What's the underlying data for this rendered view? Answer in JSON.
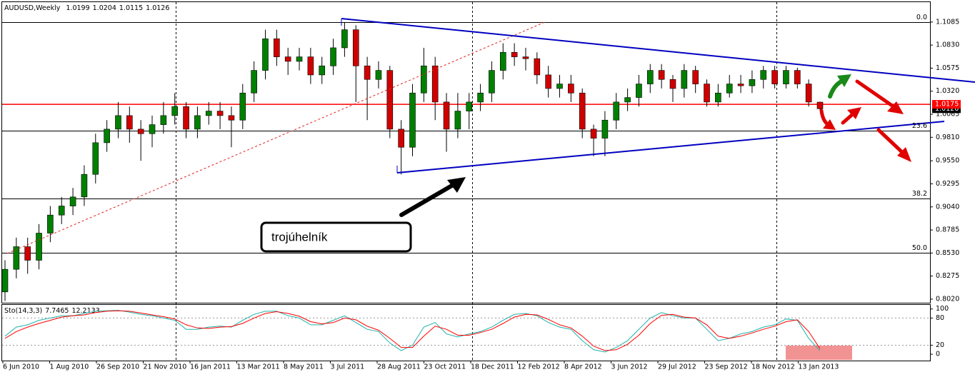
{
  "chart_data": {
    "type": "candlestick",
    "title": "AUDUSD,Weekly",
    "up_color": "#008000",
    "down_color": "#d00000",
    "candles": [
      [
        0.81,
        0.845,
        0.8,
        0.835
      ],
      [
        0.835,
        0.87,
        0.825,
        0.86
      ],
      [
        0.86,
        0.87,
        0.83,
        0.845
      ],
      [
        0.845,
        0.885,
        0.835,
        0.875
      ],
      [
        0.875,
        0.905,
        0.865,
        0.895
      ],
      [
        0.895,
        0.915,
        0.885,
        0.905
      ],
      [
        0.905,
        0.925,
        0.895,
        0.915
      ],
      [
        0.915,
        0.95,
        0.905,
        0.94
      ],
      [
        0.94,
        0.985,
        0.93,
        0.975
      ],
      [
        0.975,
        1.0,
        0.965,
        0.99
      ],
      [
        0.99,
        1.02,
        0.98,
        1.005
      ],
      [
        1.005,
        1.015,
        0.975,
        0.99
      ],
      [
        0.99,
        1.0,
        0.955,
        0.985
      ],
      [
        0.985,
        1.005,
        0.97,
        0.995
      ],
      [
        0.995,
        1.02,
        0.985,
        1.005
      ],
      [
        1.005,
        1.03,
        0.995,
        1.015
      ],
      [
        1.015,
        1.02,
        0.98,
        0.99
      ],
      [
        0.99,
        1.015,
        0.98,
        1.005
      ],
      [
        1.005,
        1.02,
        0.995,
        1.01
      ],
      [
        1.01,
        1.02,
        0.99,
        1.005
      ],
      [
        1.005,
        1.015,
        0.97,
        1.0
      ],
      [
        1.0,
        1.04,
        0.99,
        1.03
      ],
      [
        1.03,
        1.065,
        1.02,
        1.055
      ],
      [
        1.055,
        1.1,
        1.045,
        1.09
      ],
      [
        1.09,
        1.1,
        1.06,
        1.07
      ],
      [
        1.07,
        1.08,
        1.05,
        1.065
      ],
      [
        1.065,
        1.08,
        1.055,
        1.07
      ],
      [
        1.07,
        1.08,
        1.04,
        1.05
      ],
      [
        1.05,
        1.07,
        1.04,
        1.06
      ],
      [
        1.06,
        1.09,
        1.05,
        1.08
      ],
      [
        1.08,
        1.108,
        1.07,
        1.1
      ],
      [
        1.1,
        1.105,
        1.02,
        1.06
      ],
      [
        1.06,
        1.07,
        1.0,
        1.045
      ],
      [
        1.045,
        1.065,
        1.035,
        1.055
      ],
      [
        1.055,
        1.06,
        0.98,
        0.99
      ],
      [
        0.99,
        1.0,
        0.94,
        0.97
      ],
      [
        0.97,
        1.04,
        0.96,
        1.03
      ],
      [
        1.03,
        1.08,
        1.02,
        1.06
      ],
      [
        1.06,
        1.07,
        1.0,
        1.02
      ],
      [
        1.02,
        1.03,
        0.965,
        0.99
      ],
      [
        0.99,
        1.03,
        0.98,
        1.01
      ],
      [
        1.01,
        1.03,
        0.99,
        1.02
      ],
      [
        1.02,
        1.04,
        1.01,
        1.03
      ],
      [
        1.03,
        1.065,
        1.02,
        1.055
      ],
      [
        1.055,
        1.085,
        1.045,
        1.075
      ],
      [
        1.075,
        1.085,
        1.06,
        1.07
      ],
      [
        1.07,
        1.08,
        1.055,
        1.068
      ],
      [
        1.068,
        1.075,
        1.04,
        1.05
      ],
      [
        1.05,
        1.06,
        1.025,
        1.035
      ],
      [
        1.035,
        1.05,
        1.025,
        1.04
      ],
      [
        1.04,
        1.05,
        1.02,
        1.03
      ],
      [
        1.03,
        1.035,
        0.98,
        0.99
      ],
      [
        0.99,
        0.995,
        0.96,
        0.98
      ],
      [
        0.98,
        1.01,
        0.96,
        1.0
      ],
      [
        1.0,
        1.03,
        0.99,
        1.02
      ],
      [
        1.02,
        1.035,
        1.01,
        1.025
      ],
      [
        1.025,
        1.05,
        1.015,
        1.04
      ],
      [
        1.04,
        1.062,
        1.03,
        1.055
      ],
      [
        1.055,
        1.062,
        1.035,
        1.045
      ],
      [
        1.045,
        1.05,
        1.02,
        1.035
      ],
      [
        1.035,
        1.062,
        1.025,
        1.055
      ],
      [
        1.055,
        1.06,
        1.03,
        1.04
      ],
      [
        1.04,
        1.045,
        1.015,
        1.02
      ],
      [
        1.02,
        1.04,
        1.015,
        1.03
      ],
      [
        1.03,
        1.05,
        1.025,
        1.04
      ],
      [
        1.04,
        1.05,
        1.03,
        1.038
      ],
      [
        1.038,
        1.055,
        1.03,
        1.045
      ],
      [
        1.045,
        1.06,
        1.035,
        1.055
      ],
      [
        1.055,
        1.06,
        1.035,
        1.04
      ],
      [
        1.04,
        1.06,
        1.035,
        1.055
      ],
      [
        1.055,
        1.058,
        1.035,
        1.04
      ],
      [
        1.04,
        1.045,
        1.015,
        1.02
      ],
      [
        1.0199,
        1.0204,
        1.0115,
        1.0126
      ]
    ],
    "ylim": [
      0.798,
      1.1305
    ],
    "yticks": [
      1.1085,
      {
        "value": 1.083,
        "label": "1.0830"
      },
      1.0575,
      {
        "value": 1.032,
        "label": "1.0320"
      },
      1.0065,
      {
        "value": 0.981,
        "label": "0.9810"
      },
      {
        "value": 0.955,
        "label": "0.9550"
      },
      0.9295,
      {
        "value": 0.904,
        "label": "0.9040"
      },
      0.8785,
      {
        "value": 0.853,
        "label": "0.8530"
      },
      0.8275,
      {
        "value": 0.802,
        "label": "0.8020"
      }
    ],
    "fib_levels": [
      {
        "value": 1.1085,
        "label": "0.0"
      },
      {
        "value": 0.988,
        "label": "23.6"
      },
      {
        "value": 0.9133,
        "label": "38.2"
      },
      {
        "value": 0.853,
        "label": "50.0"
      }
    ],
    "level_line": {
      "value": 1.0175,
      "color": "#ff0000"
    },
    "xaxis_labels": [
      "6 Jun 2010",
      "1 Aug 2010",
      "26 Sep 2010",
      "21 Nov 2010",
      "16 Jan 2011",
      "13 Mar 2011",
      "8 May 2011",
      "3 Jul 2011",
      "28 Aug 2011",
      "23 Oct 2011",
      "18 Dec 2011",
      "12 Feb 2012",
      "8 Apr 2012",
      "3 Jun 2012",
      "29 Jul 2012",
      "23 Sep 2012",
      "18 Nov 2012",
      "13 Jan 2013"
    ],
    "annotation": "trojúhelník",
    "indicator": {
      "type": "line",
      "title": "Sto(14,3,3)",
      "ylim": [
        -14,
        109
      ],
      "yticks": [
        100,
        80,
        20,
        0
      ],
      "series": [
        {
          "color": "#20b2aa",
          "values": [
            40,
            60,
            65,
            75,
            80,
            85,
            85,
            90,
            95,
            96,
            97,
            93,
            88,
            85,
            80,
            75,
            55,
            55,
            60,
            62,
            60,
            75,
            88,
            95,
            95,
            85,
            80,
            65,
            65,
            75,
            85,
            70,
            55,
            50,
            25,
            8,
            20,
            60,
            70,
            45,
            38,
            45,
            50,
            60,
            75,
            88,
            90,
            85,
            70,
            60,
            55,
            30,
            10,
            5,
            15,
            30,
            55,
            80,
            92,
            85,
            80,
            80,
            55,
            30,
            35,
            45,
            50,
            60,
            65,
            78,
            75,
            35,
            7.7465
          ]
        },
        {
          "color": "#ff0000",
          "values": [
            35,
            50,
            60,
            68,
            75,
            82,
            85,
            87,
            92,
            95,
            96,
            95,
            91,
            87,
            83,
            78,
            65,
            58,
            57,
            60,
            61,
            68,
            80,
            90,
            94,
            90,
            84,
            72,
            67,
            70,
            80,
            76,
            62,
            53,
            35,
            15,
            15,
            40,
            62,
            55,
            42,
            42,
            48,
            55,
            68,
            82,
            88,
            87,
            77,
            65,
            58,
            40,
            18,
            8,
            10,
            22,
            42,
            68,
            86,
            88,
            82,
            80,
            65,
            40,
            35,
            40,
            47,
            55,
            62,
            72,
            76,
            50,
            12.2133
          ]
        }
      ]
    }
  }
}
